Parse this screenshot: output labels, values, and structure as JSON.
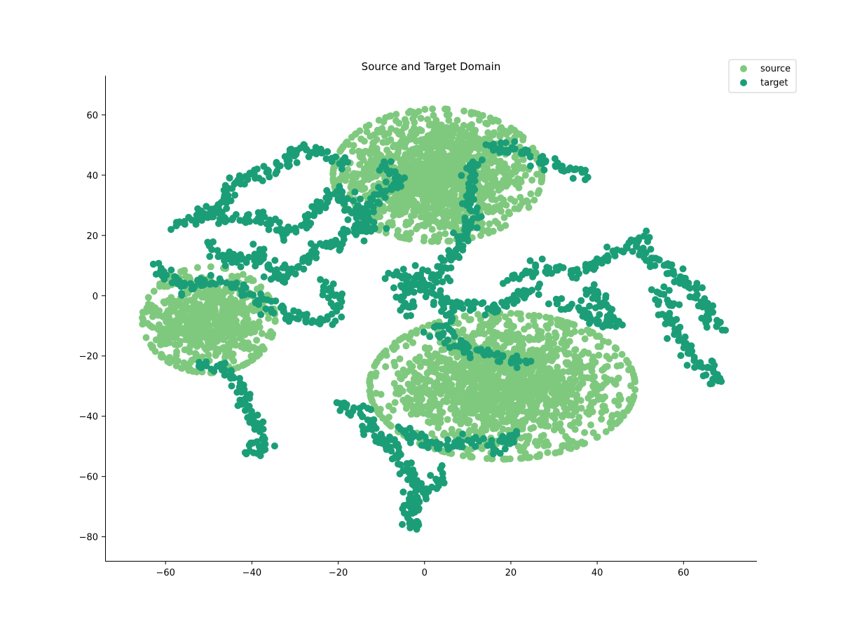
{
  "chart_data": {
    "type": "scatter",
    "title": "Source and Target Domain",
    "xlabel": "",
    "ylabel": "",
    "xlim": [
      -74,
      77
    ],
    "ylim": [
      -88,
      73
    ],
    "xticks": [
      -60,
      -40,
      -20,
      0,
      20,
      40,
      60
    ],
    "yticks": [
      -80,
      -60,
      -40,
      -20,
      0,
      20,
      40,
      60
    ],
    "grid": false,
    "legend_position": "top-right",
    "series": [
      {
        "name": "source",
        "color": "#7fc97f",
        "clusters": [
          {
            "center": [
              3,
              40
            ],
            "spread": [
              11,
              10
            ],
            "count": 1400
          },
          {
            "center": [
              -50,
              -8
            ],
            "spread": [
              7,
              8
            ],
            "count": 700
          },
          {
            "center": [
              18,
              -30
            ],
            "spread": [
              14,
              11
            ],
            "count": 1600
          }
        ]
      },
      {
        "name": "target",
        "color": "#1b9e77",
        "trails": [
          [
            [
              -57,
              22
            ],
            [
              -47,
              30
            ],
            [
              -44,
              38
            ],
            [
              -38,
              40
            ],
            [
              -32,
              44
            ],
            [
              -28,
              50
            ],
            [
              -22,
              46
            ],
            [
              -18,
              44
            ]
          ],
          [
            [
              -52,
              28
            ],
            [
              -45,
              25
            ],
            [
              -38,
              26
            ],
            [
              -32,
              20
            ],
            [
              -25,
              28
            ],
            [
              -20,
              35
            ],
            [
              -15,
              25
            ],
            [
              -12,
              22
            ],
            [
              -20,
              20
            ]
          ],
          [
            [
              -50,
              18
            ],
            [
              -44,
              10
            ],
            [
              -38,
              15
            ],
            [
              -34,
              5
            ],
            [
              -30,
              10
            ],
            [
              -26,
              14
            ],
            [
              -22,
              18
            ],
            [
              -18,
              15
            ]
          ],
          [
            [
              -62,
              10
            ],
            [
              -56,
              2
            ],
            [
              -50,
              5
            ],
            [
              -44,
              3
            ],
            [
              -40,
              0
            ],
            [
              -34,
              -5
            ],
            [
              -28,
              -8
            ],
            [
              -22,
              -8
            ],
            [
              -20,
              0
            ],
            [
              -24,
              5
            ]
          ],
          [
            [
              -52,
              -22
            ],
            [
              -46,
              -25
            ],
            [
              -42,
              -32
            ],
            [
              -40,
              -40
            ],
            [
              -38,
              -48
            ],
            [
              -40,
              -52
            ],
            [
              -36,
              -50
            ]
          ],
          [
            [
              -20,
              -35
            ],
            [
              -15,
              -38
            ],
            [
              -12,
              -45
            ],
            [
              -8,
              -50
            ],
            [
              -4,
              -55
            ],
            [
              -2,
              -62
            ],
            [
              -3,
              -70
            ],
            [
              -3,
              -78
            ]
          ],
          [
            [
              -10,
              -47
            ],
            [
              -4,
              -46
            ],
            [
              4,
              -50
            ],
            [
              10,
              -48
            ],
            [
              18,
              -50
            ],
            [
              22,
              -45
            ]
          ],
          [
            [
              4,
              -58
            ],
            [
              2,
              -62
            ],
            [
              0,
              -66
            ],
            [
              -4,
              -72
            ]
          ],
          [
            [
              14,
              50
            ],
            [
              22,
              48
            ],
            [
              28,
              44
            ],
            [
              34,
              42
            ],
            [
              38,
              40
            ]
          ],
          [
            [
              12,
              45
            ],
            [
              10,
              35
            ],
            [
              12,
              25
            ],
            [
              8,
              18
            ],
            [
              6,
              12
            ],
            [
              4,
              6
            ],
            [
              0,
              4
            ],
            [
              4,
              -3
            ],
            [
              6,
              -8
            ],
            [
              2,
              -14
            ]
          ],
          [
            [
              -10,
              44
            ],
            [
              -6,
              38
            ],
            [
              -12,
              32
            ],
            [
              -14,
              24
            ],
            [
              -18,
              20
            ]
          ],
          [
            [
              20,
              5
            ],
            [
              28,
              10
            ],
            [
              36,
              8
            ],
            [
              42,
              12
            ],
            [
              48,
              18
            ],
            [
              52,
              20
            ]
          ],
          [
            [
              30,
              -2
            ],
            [
              36,
              -5
            ],
            [
              40,
              -8
            ],
            [
              44,
              -10
            ],
            [
              40,
              2
            ],
            [
              36,
              0
            ]
          ],
          [
            [
              5,
              -14
            ],
            [
              10,
              -18
            ],
            [
              16,
              -20
            ],
            [
              20,
              -22
            ],
            [
              24,
              -21
            ]
          ],
          [
            [
              8,
              -2
            ],
            [
              14,
              -5
            ],
            [
              18,
              -3
            ],
            [
              22,
              0
            ],
            [
              26,
              3
            ]
          ],
          [
            [
              50,
              15
            ],
            [
              56,
              10
            ],
            [
              60,
              5
            ],
            [
              64,
              0
            ],
            [
              66,
              -5
            ],
            [
              68,
              -12
            ]
          ],
          [
            [
              54,
              2
            ],
            [
              56,
              -5
            ],
            [
              58,
              -12
            ],
            [
              62,
              -20
            ],
            [
              66,
              -25
            ],
            [
              68,
              -30
            ]
          ],
          [
            [
              -8,
              8
            ],
            [
              -4,
              4
            ],
            [
              0,
              8
            ],
            [
              -6,
              0
            ],
            [
              -2,
              -6
            ]
          ]
        ]
      }
    ]
  }
}
